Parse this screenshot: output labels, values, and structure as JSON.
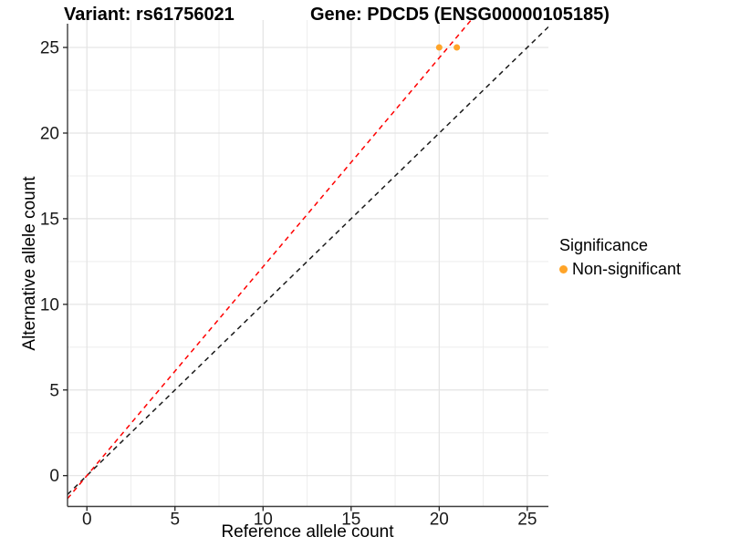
{
  "chart_data": {
    "type": "scatter",
    "title_variant": "Variant: rs61756021",
    "title_gene": "Gene: PDCD5 (ENSG00000105185)",
    "xlabel": "Reference allele count",
    "ylabel": "Alternative allele count",
    "x_ticks": [
      0,
      5,
      10,
      15,
      20,
      25
    ],
    "y_ticks": [
      0,
      5,
      10,
      15,
      20,
      25
    ],
    "minor_x": [
      2.5,
      7.5,
      12.5,
      17.5,
      22.5
    ],
    "minor_y": [
      2.5,
      7.5,
      12.5,
      17.5,
      22.5
    ],
    "xlim": [
      -1.1,
      26.2
    ],
    "ylim": [
      -1.8,
      26.6
    ],
    "grid": true,
    "points": [
      {
        "x": 20,
        "y": 25,
        "significance": "Non-significant"
      },
      {
        "x": 21,
        "y": 25,
        "significance": "Non-significant"
      }
    ],
    "point_color": "#ffa428",
    "lines": [
      {
        "name": "identity-line",
        "slope": 1,
        "intercept": 0,
        "color": "#1a1a1a",
        "dashed": true
      },
      {
        "name": "allelic-ratio-line",
        "slope": 1.2195,
        "intercept": 0,
        "color": "#ff0000",
        "dashed": true
      }
    ],
    "legend": {
      "title": "Significance",
      "position": "right",
      "entries": [
        {
          "label": "Non-significant",
          "color": "#ffa428"
        }
      ]
    },
    "colors": {
      "grid_major": "#e3e3e3",
      "grid_minor": "#ededed",
      "axis": "#3c3c3c",
      "tick_text": "#1a1a1a"
    }
  }
}
